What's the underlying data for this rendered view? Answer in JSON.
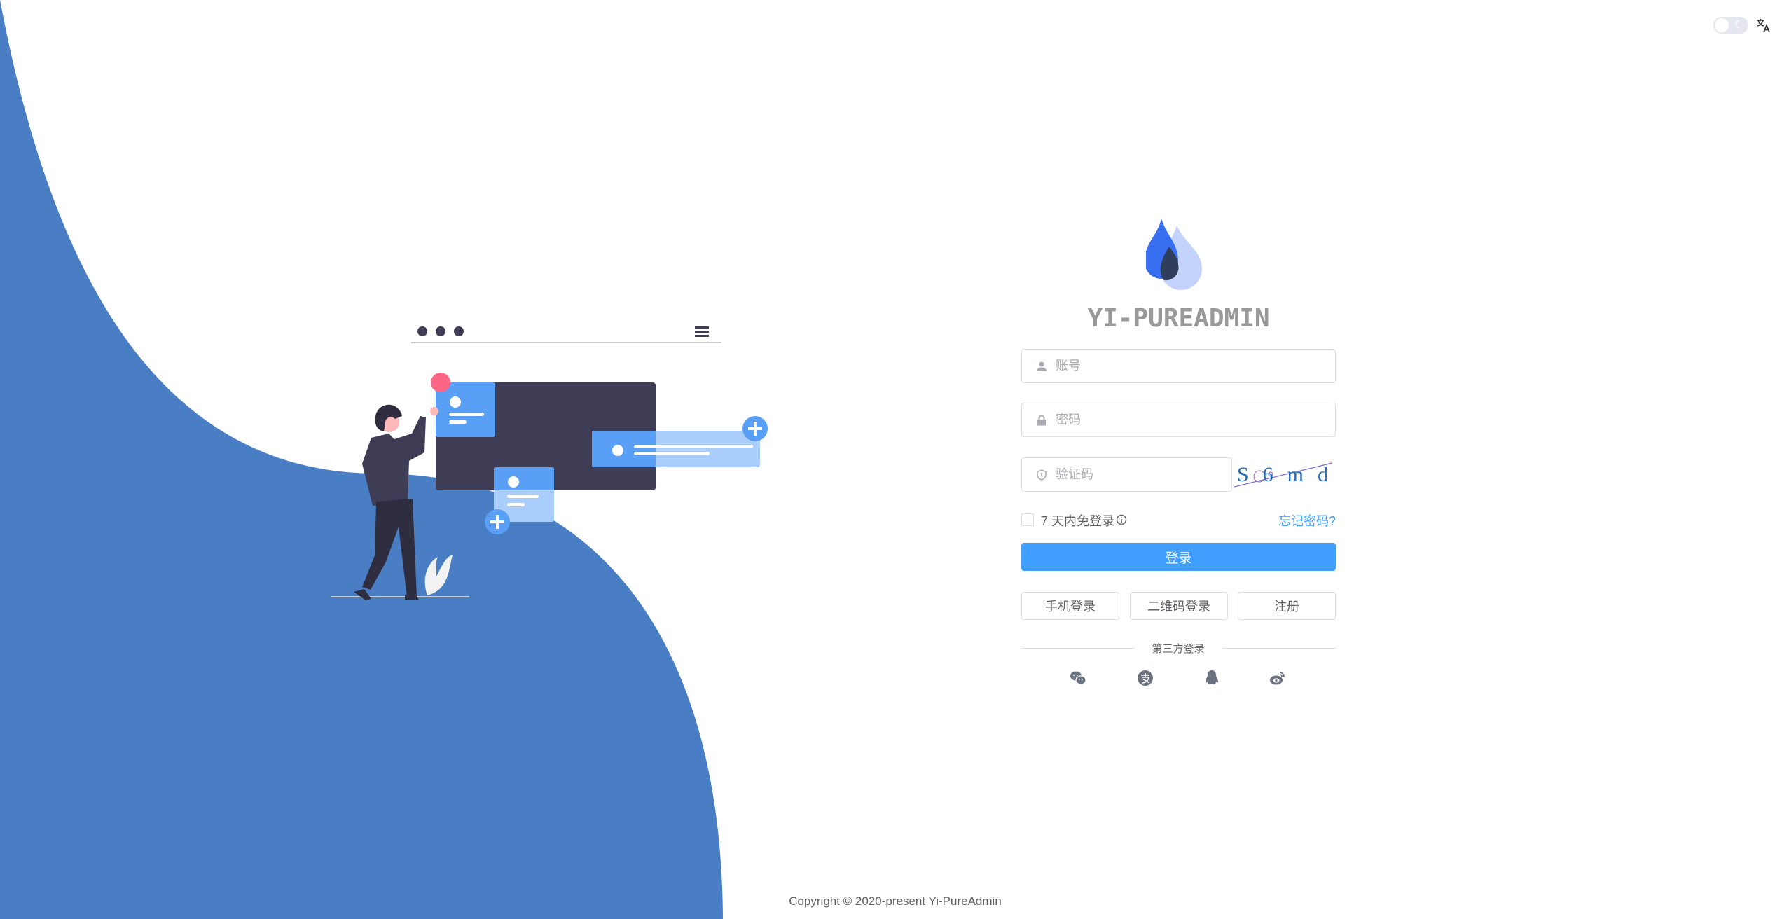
{
  "app": {
    "title": "YI-PUREADMIN",
    "copyright": "Copyright © 2020-present Yi-PureAdmin"
  },
  "topbar": {
    "theme_toggle": "dark-mode-toggle",
    "language_icon": "translate-icon",
    "dark_mode": false
  },
  "form": {
    "username": {
      "placeholder": "账号",
      "value": ""
    },
    "password": {
      "placeholder": "密码",
      "value": ""
    },
    "captcha": {
      "placeholder": "验证码",
      "value": "",
      "image_text": "S6md"
    },
    "remember_label": "7 天内免登录",
    "forgot_link": "忘记密码?",
    "login_button": "登录",
    "alt_buttons": [
      "手机登录",
      "二维码登录",
      "注册"
    ],
    "third_party_label": "第三方登录",
    "third_party_icons": [
      "wechat-icon",
      "alipay-icon",
      "qq-icon",
      "weibo-icon"
    ]
  },
  "colors": {
    "primary": "#409eff",
    "wave": "#4a7ec4",
    "title": "#999999"
  }
}
